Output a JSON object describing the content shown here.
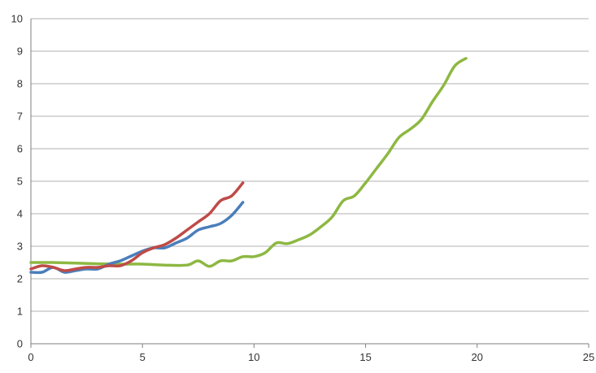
{
  "chart_data": {
    "type": "line",
    "title": "",
    "xlabel": "",
    "ylabel": "",
    "xlim": [
      0,
      25
    ],
    "ylim": [
      0,
      10
    ],
    "x_ticks": [
      "0",
      "5",
      "10",
      "15",
      "20",
      "25"
    ],
    "y_ticks": [
      "0",
      "1",
      "2",
      "3",
      "4",
      "5",
      "6",
      "7",
      "8",
      "9",
      "10"
    ],
    "grid": "horizontal",
    "legend": "none",
    "series": [
      {
        "color": "#4a7ebb",
        "points": [
          [
            0,
            2.2
          ],
          [
            0.5,
            2.2
          ],
          [
            1,
            2.35
          ],
          [
            1.5,
            2.2
          ],
          [
            2,
            2.25
          ],
          [
            2.5,
            2.3
          ],
          [
            3,
            2.3
          ],
          [
            3.5,
            2.45
          ],
          [
            4,
            2.55
          ],
          [
            4.5,
            2.7
          ],
          [
            5,
            2.85
          ],
          [
            5.5,
            2.95
          ],
          [
            6,
            2.95
          ],
          [
            6.5,
            3.1
          ],
          [
            7,
            3.25
          ],
          [
            7.5,
            3.5
          ],
          [
            8,
            3.6
          ],
          [
            8.5,
            3.7
          ],
          [
            9,
            3.95
          ],
          [
            9.5,
            4.35
          ]
        ]
      },
      {
        "color": "#be4b48",
        "points": [
          [
            0,
            2.3
          ],
          [
            0.5,
            2.4
          ],
          [
            1,
            2.35
          ],
          [
            1.5,
            2.25
          ],
          [
            2,
            2.3
          ],
          [
            2.5,
            2.35
          ],
          [
            3,
            2.35
          ],
          [
            3.5,
            2.4
          ],
          [
            4,
            2.4
          ],
          [
            4.5,
            2.55
          ],
          [
            5,
            2.8
          ],
          [
            5.5,
            2.95
          ],
          [
            6,
            3.05
          ],
          [
            6.5,
            3.25
          ],
          [
            7,
            3.5
          ],
          [
            7.5,
            3.75
          ],
          [
            8,
            4.0
          ],
          [
            8.5,
            4.4
          ],
          [
            9,
            4.55
          ],
          [
            9.5,
            4.95
          ]
        ]
      },
      {
        "color": "#8db842",
        "points": [
          [
            0,
            2.5
          ],
          [
            1,
            2.5
          ],
          [
            2,
            2.48
          ],
          [
            3,
            2.46
          ],
          [
            4,
            2.45
          ],
          [
            5,
            2.45
          ],
          [
            6,
            2.42
          ],
          [
            7,
            2.42
          ],
          [
            7.5,
            2.55
          ],
          [
            8,
            2.38
          ],
          [
            8.5,
            2.55
          ],
          [
            9,
            2.55
          ],
          [
            9.5,
            2.68
          ],
          [
            10,
            2.68
          ],
          [
            10.5,
            2.8
          ],
          [
            11,
            3.1
          ],
          [
            11.5,
            3.08
          ],
          [
            12,
            3.2
          ],
          [
            12.5,
            3.35
          ],
          [
            13,
            3.6
          ],
          [
            13.5,
            3.9
          ],
          [
            14,
            4.4
          ],
          [
            14.5,
            4.55
          ],
          [
            15,
            4.95
          ],
          [
            15.5,
            5.4
          ],
          [
            16,
            5.85
          ],
          [
            16.5,
            6.35
          ],
          [
            17,
            6.6
          ],
          [
            17.5,
            6.9
          ],
          [
            18,
            7.45
          ],
          [
            18.5,
            7.95
          ],
          [
            19,
            8.55
          ],
          [
            19.5,
            8.78
          ]
        ]
      }
    ]
  }
}
